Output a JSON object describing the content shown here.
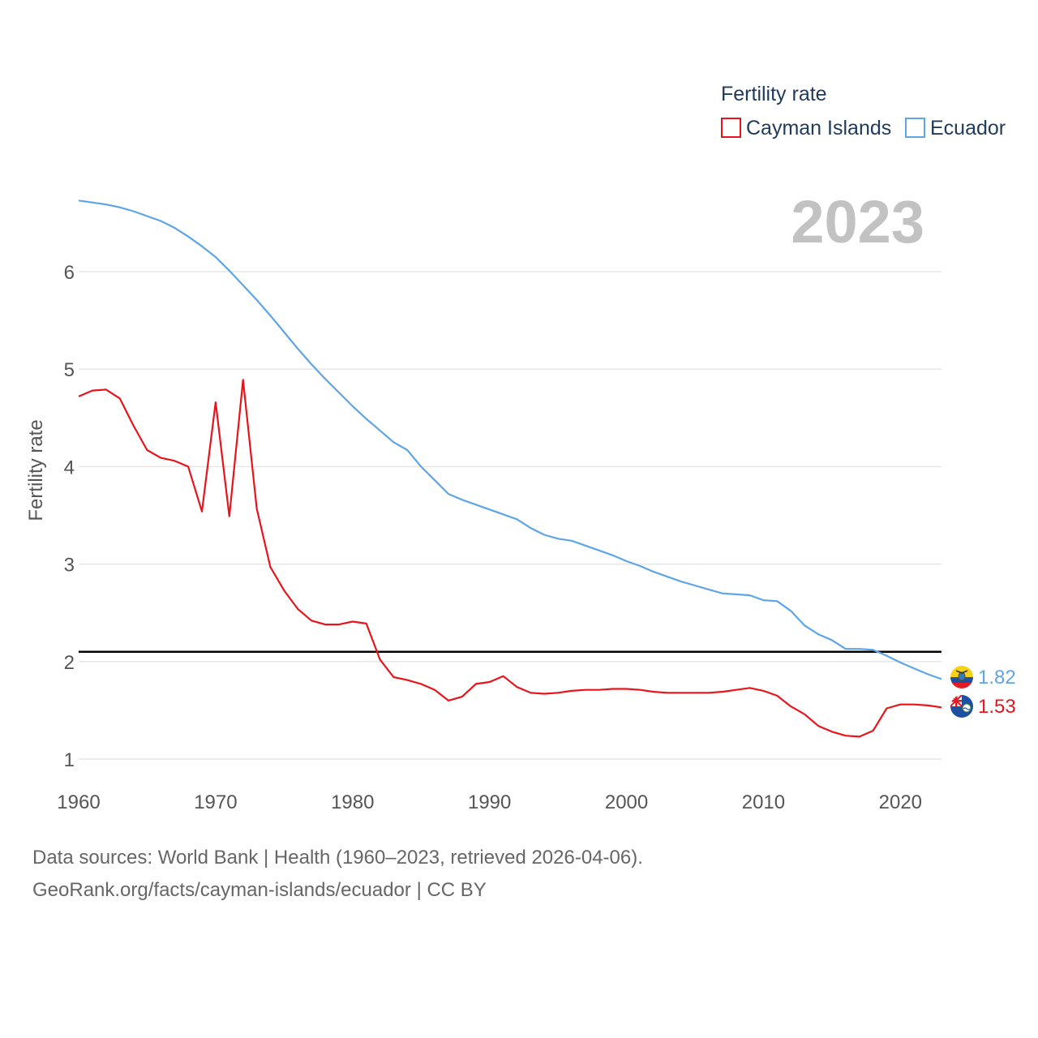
{
  "chart_data": {
    "type": "line",
    "title": "",
    "xlabel": "",
    "ylabel": "Fertility rate",
    "year_label": "2023",
    "xlim": [
      1960,
      2023
    ],
    "ylim": [
      0.8,
      7.0
    ],
    "xticks": [
      1960,
      1970,
      1980,
      1990,
      2000,
      2010,
      2020
    ],
    "yticks": [
      1,
      2,
      3,
      4,
      5,
      6
    ],
    "grid": true,
    "legend": {
      "title": "Fertility rate",
      "position": "top-right"
    },
    "reference_line": {
      "y": 2.1
    },
    "x": [
      1960,
      1961,
      1962,
      1963,
      1964,
      1965,
      1966,
      1967,
      1968,
      1969,
      1970,
      1971,
      1972,
      1973,
      1974,
      1975,
      1976,
      1977,
      1978,
      1979,
      1980,
      1981,
      1982,
      1983,
      1984,
      1985,
      1986,
      1987,
      1988,
      1989,
      1990,
      1991,
      1992,
      1993,
      1994,
      1995,
      1996,
      1997,
      1998,
      1999,
      2000,
      2001,
      2002,
      2003,
      2004,
      2005,
      2006,
      2007,
      2008,
      2009,
      2010,
      2011,
      2012,
      2013,
      2014,
      2015,
      2016,
      2017,
      2018,
      2019,
      2020,
      2021,
      2022,
      2023
    ],
    "series": [
      {
        "name": "Cayman Islands",
        "color": "#e8141b",
        "end_label": "1.53",
        "flag": "cayman-islands-flag-icon",
        "values": [
          4.72,
          4.78,
          4.79,
          4.7,
          4.42,
          4.17,
          4.09,
          4.06,
          4.0,
          3.54,
          4.66,
          3.49,
          4.89,
          3.57,
          2.97,
          2.73,
          2.54,
          2.42,
          2.38,
          2.38,
          2.41,
          2.39,
          2.02,
          1.84,
          1.81,
          1.77,
          1.71,
          1.6,
          1.64,
          1.77,
          1.79,
          1.85,
          1.74,
          1.68,
          1.67,
          1.68,
          1.7,
          1.71,
          1.71,
          1.72,
          1.72,
          1.71,
          1.69,
          1.68,
          1.68,
          1.68,
          1.68,
          1.69,
          1.71,
          1.73,
          1.7,
          1.65,
          1.54,
          1.46,
          1.34,
          1.28,
          1.24,
          1.23,
          1.29,
          1.52,
          1.56,
          1.56,
          1.55,
          1.53
        ]
      },
      {
        "name": "Ecuador",
        "color": "#5ea5e8",
        "end_label": "1.82",
        "flag": "ecuador-flag-icon",
        "values": [
          6.73,
          6.71,
          6.69,
          6.66,
          6.62,
          6.57,
          6.52,
          6.45,
          6.36,
          6.26,
          6.15,
          6.01,
          5.86,
          5.71,
          5.55,
          5.38,
          5.21,
          5.05,
          4.9,
          4.76,
          4.62,
          4.49,
          4.37,
          4.25,
          4.17,
          4.0,
          3.86,
          3.72,
          3.66,
          3.61,
          3.56,
          3.51,
          3.46,
          3.37,
          3.3,
          3.26,
          3.24,
          3.19,
          3.14,
          3.09,
          3.03,
          2.98,
          2.92,
          2.87,
          2.82,
          2.78,
          2.74,
          2.7,
          2.69,
          2.68,
          2.63,
          2.62,
          2.52,
          2.37,
          2.28,
          2.22,
          2.13,
          2.13,
          2.12,
          2.06,
          1.99,
          1.93,
          1.87,
          1.82
        ]
      }
    ]
  },
  "footer": {
    "line1": "Data sources: World Bank | Health (1960–2023, retrieved 2026-04-06).",
    "line2": "GeoRank.org/facts/cayman-islands/ecuador | CC BY"
  }
}
